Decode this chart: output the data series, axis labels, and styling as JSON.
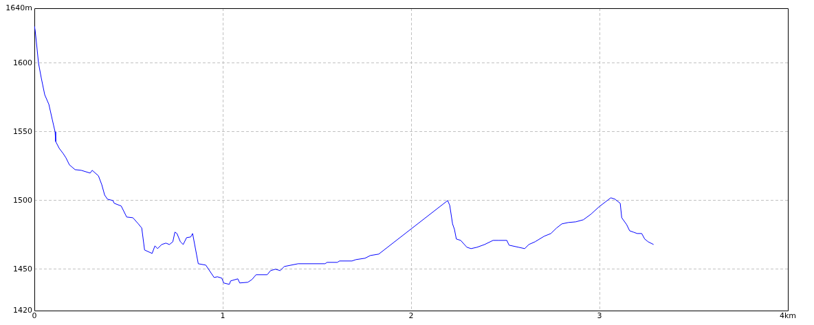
{
  "chart_data": {
    "type": "line",
    "x": [
      0,
      0.004,
      0.011,
      0.022,
      0.037,
      0.055,
      0.077,
      0.095,
      0.11,
      0.113,
      0.132,
      0.154,
      0.168,
      0.186,
      0.216,
      0.249,
      0.296,
      0.307,
      0.34,
      0.358,
      0.373,
      0.388,
      0.417,
      0.424,
      0.461,
      0.49,
      0.523,
      0.552,
      0.57,
      0.585,
      0.625,
      0.64,
      0.654,
      0.676,
      0.698,
      0.717,
      0.735,
      0.746,
      0.757,
      0.775,
      0.79,
      0.808,
      0.83,
      0.84,
      0.87,
      0.91,
      0.954,
      0.972,
      0.995,
      1.005,
      1.035,
      1.042,
      1.08,
      1.09,
      1.133,
      1.155,
      1.177,
      1.236,
      1.254,
      1.28,
      1.305,
      1.327,
      1.4,
      1.543,
      1.554,
      1.608,
      1.62,
      1.686,
      1.707,
      1.755,
      1.784,
      1.828,
      2.194,
      2.205,
      2.22,
      2.23,
      2.24,
      2.263,
      2.296,
      2.318,
      2.35,
      2.39,
      2.435,
      2.464,
      2.508,
      2.52,
      2.57,
      2.603,
      2.625,
      2.658,
      2.706,
      2.742,
      2.772,
      2.8,
      2.834,
      2.874,
      2.914,
      2.954,
      2.998,
      3.06,
      3.082,
      3.11,
      3.118,
      3.144,
      3.16,
      3.18,
      3.2,
      3.224,
      3.24,
      3.258,
      3.287
    ],
    "series": [
      {
        "color": "#0000ff",
        "values": [
          1627,
          1624,
          1615,
          1600,
          1589,
          1577,
          1570,
          1559,
          1550,
          1543,
          1538,
          1534,
          1531,
          1526,
          1522.5,
          1522,
          1520,
          1522,
          1518,
          1511.5,
          1504,
          1501,
          1500,
          1498,
          1496,
          1488,
          1487.5,
          1483,
          1480,
          1464,
          1461.5,
          1467,
          1465,
          1468,
          1469,
          1468,
          1470,
          1477,
          1476,
          1470,
          1468,
          1473,
          1473.5,
          1476,
          1454,
          1453,
          1444,
          1444.5,
          1443.5,
          1440,
          1439,
          1441.5,
          1443,
          1440,
          1440.5,
          1442.5,
          1446,
          1446,
          1449,
          1450,
          1449,
          1452,
          1454,
          1454,
          1455,
          1455,
          1456,
          1456,
          1457,
          1458,
          1460,
          1461,
          1500,
          1496.5,
          1483,
          1479,
          1472,
          1471,
          1466,
          1465,
          1466,
          1468,
          1471,
          1471,
          1471,
          1467.5,
          1466,
          1465,
          1468,
          1470,
          1474,
          1476,
          1480,
          1483,
          1484,
          1484.5,
          1486,
          1490,
          1495.5,
          1502,
          1501,
          1498,
          1487.5,
          1482.5,
          1478,
          1477,
          1476,
          1476,
          1472,
          1470,
          1468
        ]
      }
    ],
    "xlim": [
      0,
      4
    ],
    "xticks": [
      0,
      1,
      2,
      3,
      {
        "value": 4,
        "label": "4km"
      }
    ],
    "ylim": [
      1420,
      1640
    ],
    "yticks": [
      1420,
      1450,
      1500,
      1550,
      1600,
      {
        "value": 1640,
        "label": "1640m"
      }
    ],
    "grid": true,
    "legend": false,
    "marker": "none",
    "line_style": "solid"
  }
}
